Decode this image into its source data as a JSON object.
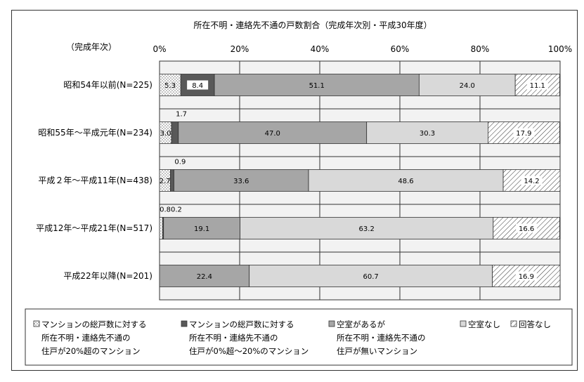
{
  "chart_data": {
    "type": "bar",
    "orientation": "horizontal",
    "stacked": true,
    "title": "所在不明・連絡先不通の戸数割合（完成年次別・平成30年度）",
    "category_axis_label": "（完成年次）",
    "categories": [
      "昭和54年以前(N=225)",
      "昭和55年～平成元年(N=234)",
      "平成２年～平成11年(N=438)",
      "平成12年～平成21年(N=517)",
      "平成22年以降(N=201)"
    ],
    "x_ticks": [
      "0%",
      "20%",
      "40%",
      "60%",
      "80%",
      "100%"
    ],
    "xlim": [
      0,
      100
    ],
    "series": [
      {
        "name": "マンションの総戸数に対する所在不明・連絡先不通の住戸が20%超のマンション",
        "legend_lines": [
          "マンションの総戸数に対する",
          "所在不明・連絡先不通の",
          "住戸が20%超のマンション"
        ],
        "values": [
          5.3,
          3.0,
          2.7,
          0.8,
          0.0
        ],
        "labels": [
          "5.3",
          "3.0",
          "2.7",
          "0.8",
          ""
        ],
        "color": "#ffffff",
        "pattern": "dots"
      },
      {
        "name": "マンションの総戸数に対する所在不明・連絡先不通の住戸が0%超～20%のマンション",
        "legend_lines": [
          "マンションの総戸数に対する",
          "所在不明・連絡先不通の",
          "住戸が0%超～20%のマンション"
        ],
        "values": [
          8.4,
          1.7,
          0.9,
          0.2,
          0.0
        ],
        "labels": [
          "8.4",
          "1.7",
          "0.9",
          "0.2",
          ""
        ],
        "color": "#595959"
      },
      {
        "name": "空室があるが所在不明・連絡先不通の住戸が無いマンション",
        "legend_lines": [
          "空室があるが",
          "所在不明・連絡先不通の",
          "住戸が無いマンション"
        ],
        "values": [
          51.1,
          47.0,
          33.6,
          19.1,
          22.4
        ],
        "labels": [
          "51.1",
          "47.0",
          "33.6",
          "19.1",
          "22.4"
        ],
        "color": "#a6a6a6"
      },
      {
        "name": "空室なし",
        "legend_lines": [
          "空室なし"
        ],
        "values": [
          24.0,
          30.3,
          48.6,
          63.2,
          60.7
        ],
        "labels": [
          "24.0",
          "30.3",
          "48.6",
          "63.2",
          "60.7"
        ],
        "color": "#d9d9d9"
      },
      {
        "name": "回答なし",
        "legend_lines": [
          "回答なし"
        ],
        "values": [
          11.1,
          17.9,
          14.2,
          16.6,
          16.9
        ],
        "labels": [
          "11.1",
          "17.9",
          "14.2",
          "16.6",
          "16.9"
        ],
        "color": "#ffffff",
        "pattern": "hatch"
      }
    ],
    "combined_labels": [
      "",
      "",
      "",
      "0.80.2",
      ""
    ],
    "grid": true,
    "legend_position": "bottom"
  }
}
